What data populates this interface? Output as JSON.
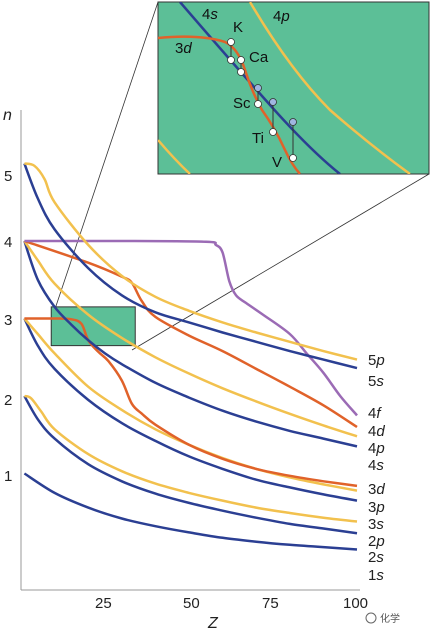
{
  "chart_data": {
    "type": "line",
    "xlabel": "Z",
    "ylabel": "n",
    "xlim": [
      0,
      100
    ],
    "ylim": [
      0,
      5.7
    ],
    "x_ticks": [
      "25",
      "50",
      "75",
      "100"
    ],
    "y_ticks": [
      "1",
      "2",
      "3",
      "4",
      "5"
    ],
    "colors": {
      "s": "#2b3f93",
      "p": "#f2c14e",
      "d": "#e0622a",
      "f": "#9b6bb5",
      "inset_bg": "#5cbf97",
      "inset_border": "#333333"
    },
    "series": [
      {
        "name": "1s",
        "label": "1s",
        "color": "#2b3f93",
        "points": [
          [
            1,
            1.0
          ],
          [
            10,
            0.75
          ],
          [
            20,
            0.56
          ],
          [
            30,
            0.42
          ],
          [
            40,
            0.32
          ],
          [
            50,
            0.24
          ],
          [
            60,
            0.17
          ],
          [
            70,
            0.12
          ],
          [
            80,
            0.08
          ],
          [
            90,
            0.05
          ],
          [
            100,
            0.02
          ]
        ]
      },
      {
        "name": "2s",
        "label": "2s",
        "color": "#2b3f93",
        "points": [
          [
            1,
            2.0
          ],
          [
            5,
            1.7
          ],
          [
            10,
            1.45
          ],
          [
            20,
            1.12
          ],
          [
            30,
            0.9
          ],
          [
            40,
            0.74
          ],
          [
            50,
            0.62
          ],
          [
            60,
            0.52
          ],
          [
            70,
            0.43
          ],
          [
            80,
            0.35
          ],
          [
            90,
            0.29
          ],
          [
            100,
            0.23
          ]
        ]
      },
      {
        "name": "2p",
        "label": "2p",
        "color": "#f2c14e",
        "points": [
          [
            1,
            2.0
          ],
          [
            3,
            1.97
          ],
          [
            6,
            1.8
          ],
          [
            10,
            1.57
          ],
          [
            20,
            1.25
          ],
          [
            30,
            1.03
          ],
          [
            40,
            0.87
          ],
          [
            50,
            0.75
          ],
          [
            60,
            0.65
          ],
          [
            70,
            0.56
          ],
          [
            80,
            0.49
          ],
          [
            90,
            0.43
          ],
          [
            100,
            0.38
          ]
        ]
      },
      {
        "name": "3s",
        "label": "3s",
        "color": "#2b3f93",
        "points": [
          [
            1,
            3.0
          ],
          [
            5,
            2.65
          ],
          [
            10,
            2.35
          ],
          [
            20,
            1.95
          ],
          [
            30,
            1.65
          ],
          [
            40,
            1.42
          ],
          [
            50,
            1.22
          ],
          [
            60,
            1.06
          ],
          [
            70,
            0.92
          ],
          [
            80,
            0.82
          ],
          [
            90,
            0.73
          ],
          [
            100,
            0.65
          ]
        ]
      },
      {
        "name": "3p",
        "label": "3p",
        "color": "#f2c14e",
        "points": [
          [
            1,
            3.0
          ],
          [
            5,
            2.8
          ],
          [
            10,
            2.55
          ],
          [
            20,
            2.12
          ],
          [
            30,
            1.82
          ],
          [
            40,
            1.57
          ],
          [
            50,
            1.37
          ],
          [
            60,
            1.2
          ],
          [
            70,
            1.06
          ],
          [
            80,
            0.95
          ],
          [
            90,
            0.86
          ],
          [
            100,
            0.78
          ]
        ]
      },
      {
        "name": "3d",
        "label": "3d",
        "color": "#e0622a",
        "points": [
          [
            1,
            3.0
          ],
          [
            10,
            3.0
          ],
          [
            15,
            2.99
          ],
          [
            18,
            2.93
          ],
          [
            20,
            2.72
          ],
          [
            23,
            2.57
          ],
          [
            26,
            2.45
          ],
          [
            30,
            2.2
          ],
          [
            33,
            1.9
          ],
          [
            36,
            1.77
          ],
          [
            40,
            1.63
          ],
          [
            50,
            1.37
          ],
          [
            60,
            1.19
          ],
          [
            70,
            1.06
          ],
          [
            80,
            0.97
          ],
          [
            90,
            0.9
          ],
          [
            100,
            0.84
          ]
        ]
      },
      {
        "name": "4s",
        "label": "4s",
        "color": "#2b3f93",
        "points": [
          [
            1,
            4.0
          ],
          [
            5,
            3.5
          ],
          [
            10,
            3.15
          ],
          [
            15,
            2.92
          ],
          [
            20,
            2.72
          ],
          [
            25,
            2.55
          ],
          [
            30,
            2.41
          ],
          [
            40,
            2.17
          ],
          [
            50,
            1.98
          ],
          [
            60,
            1.81
          ],
          [
            70,
            1.67
          ],
          [
            80,
            1.55
          ],
          [
            90,
            1.45
          ],
          [
            100,
            1.35
          ]
        ]
      },
      {
        "name": "4p",
        "label": "4p",
        "color": "#f2c14e",
        "points": [
          [
            1,
            4.0
          ],
          [
            5,
            3.75
          ],
          [
            10,
            3.45
          ],
          [
            20,
            3.05
          ],
          [
            30,
            2.75
          ],
          [
            40,
            2.5
          ],
          [
            50,
            2.29
          ],
          [
            60,
            2.1
          ],
          [
            70,
            1.93
          ],
          [
            80,
            1.77
          ],
          [
            90,
            1.62
          ],
          [
            100,
            1.48
          ]
        ]
      },
      {
        "name": "4d",
        "label": "4d",
        "color": "#e0622a",
        "points": [
          [
            1,
            4.0
          ],
          [
            20,
            3.72
          ],
          [
            30,
            3.54
          ],
          [
            33,
            3.46
          ],
          [
            36,
            3.22
          ],
          [
            40,
            3.02
          ],
          [
            50,
            2.78
          ],
          [
            60,
            2.58
          ],
          [
            70,
            2.35
          ],
          [
            80,
            2.12
          ],
          [
            90,
            1.88
          ],
          [
            100,
            1.6
          ]
        ]
      },
      {
        "name": "4f",
        "label": "4f",
        "color": "#9b6bb5",
        "points": [
          [
            1,
            4.0
          ],
          [
            30,
            4.0
          ],
          [
            55,
            3.99
          ],
          [
            58,
            3.95
          ],
          [
            60,
            3.85
          ],
          [
            62,
            3.48
          ],
          [
            64,
            3.3
          ],
          [
            67,
            3.2
          ],
          [
            72,
            3.05
          ],
          [
            80,
            2.8
          ],
          [
            85,
            2.55
          ],
          [
            90,
            2.3
          ],
          [
            95,
            2.0
          ],
          [
            100,
            1.75
          ]
        ]
      },
      {
        "name": "5s",
        "label": "5s",
        "color": "#2b3f93",
        "points": [
          [
            1,
            5.0
          ],
          [
            5,
            4.55
          ],
          [
            10,
            4.15
          ],
          [
            20,
            3.65
          ],
          [
            30,
            3.3
          ],
          [
            40,
            3.08
          ],
          [
            50,
            2.95
          ],
          [
            60,
            2.82
          ],
          [
            70,
            2.7
          ],
          [
            80,
            2.58
          ],
          [
            90,
            2.47
          ],
          [
            100,
            2.36
          ]
        ]
      },
      {
        "name": "5p",
        "label": "5p",
        "color": "#f2c14e",
        "points": [
          [
            1,
            5.0
          ],
          [
            4,
            4.97
          ],
          [
            7,
            4.8
          ],
          [
            10,
            4.5
          ],
          [
            20,
            3.95
          ],
          [
            30,
            3.55
          ],
          [
            40,
            3.28
          ],
          [
            50,
            3.1
          ],
          [
            60,
            2.95
          ],
          [
            70,
            2.82
          ],
          [
            80,
            2.7
          ],
          [
            90,
            2.58
          ],
          [
            100,
            2.47
          ]
        ]
      }
    ],
    "highlight_box": {
      "x": [
        9,
        34
      ],
      "y": [
        2.65,
        3.15
      ]
    },
    "inset": {
      "orbital_labels": [
        {
          "text": "4s",
          "italic_part": "s"
        },
        {
          "text": "4p",
          "italic_part": "p"
        },
        {
          "text": "3d",
          "italic_part": "d"
        }
      ],
      "element_labels": [
        "K",
        "Ca",
        "Sc",
        "Ti",
        "V"
      ]
    },
    "watermark": "化学"
  }
}
